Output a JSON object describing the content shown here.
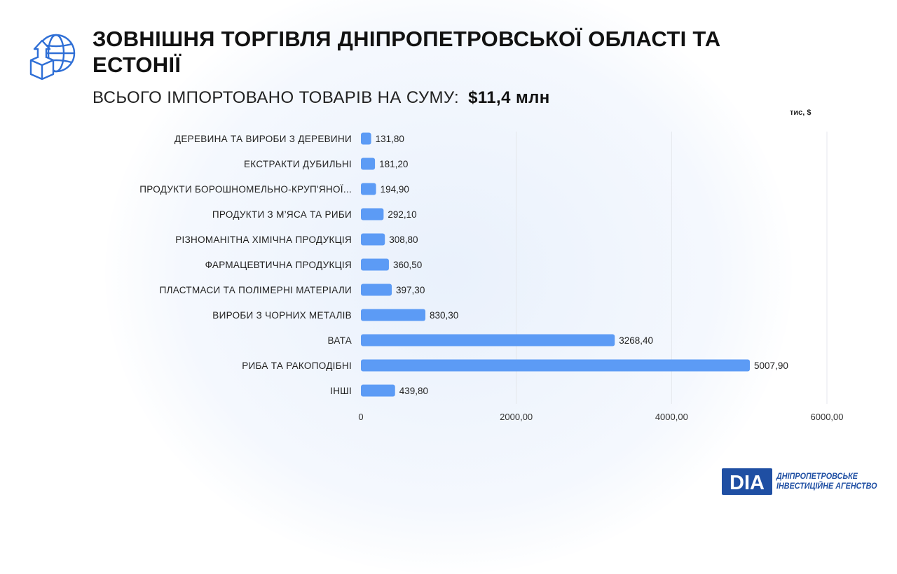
{
  "title": "ЗОВНІШНЯ ТОРГІВЛЯ ДНІПРОПЕТРОВСЬКОЇ ОБЛАСТІ ТА ЕСТОНІЇ",
  "subtitle": {
    "label": "ВСЬОГО ІМПОРТОВАНО ТОВАРІВ НА СУМУ:",
    "amount": "$11,4 млн"
  },
  "unit_label": "тис, $",
  "logo": {
    "mark": "DIA",
    "line1": "ДНІПРОПЕТРОВСЬКЕ",
    "line2": "ІНВЕСТИЦІЙНЕ АГЕНСТВО"
  },
  "icons": {
    "header": "globe-box-upload-icon"
  },
  "colors": {
    "bar": "#5c9bf5",
    "accent": "#1f4fa3",
    "gridline": "#e4e7ec"
  },
  "chart_data": {
    "type": "bar",
    "orientation": "horizontal",
    "categories": [
      "ДЕРЕВИНА ТА ВИРОБИ З ДЕРЕВИНИ",
      "ЕКСТРАКТИ ДУБИЛЬНІ",
      "ПРОДУКТИ БОРОШНОМЕЛЬНО-КРУП'ЯНОЇ...",
      "ПРОДУКТИ З М’ЯСА ТА РИБИ",
      "РІЗНОМАНІТНА ХІМІЧНА ПРОДУКЦІЯ",
      "ФАРМАЦЕВТИЧНА ПРОДУКЦІЯ",
      "ПЛАСТМАСИ ТА ПОЛІМЕРНІ МАТЕРІАЛИ",
      "ВИРОБИ З ЧОРНИХ МЕТАЛІВ",
      "ВАТА",
      "РИБА ТА РАКОПОДІБНІ",
      "ІНШІ"
    ],
    "values": [
      131.8,
      181.2,
      194.9,
      292.1,
      308.8,
      360.5,
      397.3,
      830.3,
      3268.4,
      5007.9,
      439.8
    ],
    "value_labels": [
      "131,80",
      "181,20",
      "194,90",
      "292,10",
      "308,80",
      "360,50",
      "397,30",
      "830,30",
      "3268,40",
      "5007,90",
      "439,80"
    ],
    "xlim": [
      0,
      6000
    ],
    "ticks": [
      0,
      2000,
      4000,
      6000
    ],
    "tick_labels": [
      "0",
      "2000,00",
      "4000,00",
      "6000,00"
    ],
    "grid": true,
    "legend": "none"
  }
}
